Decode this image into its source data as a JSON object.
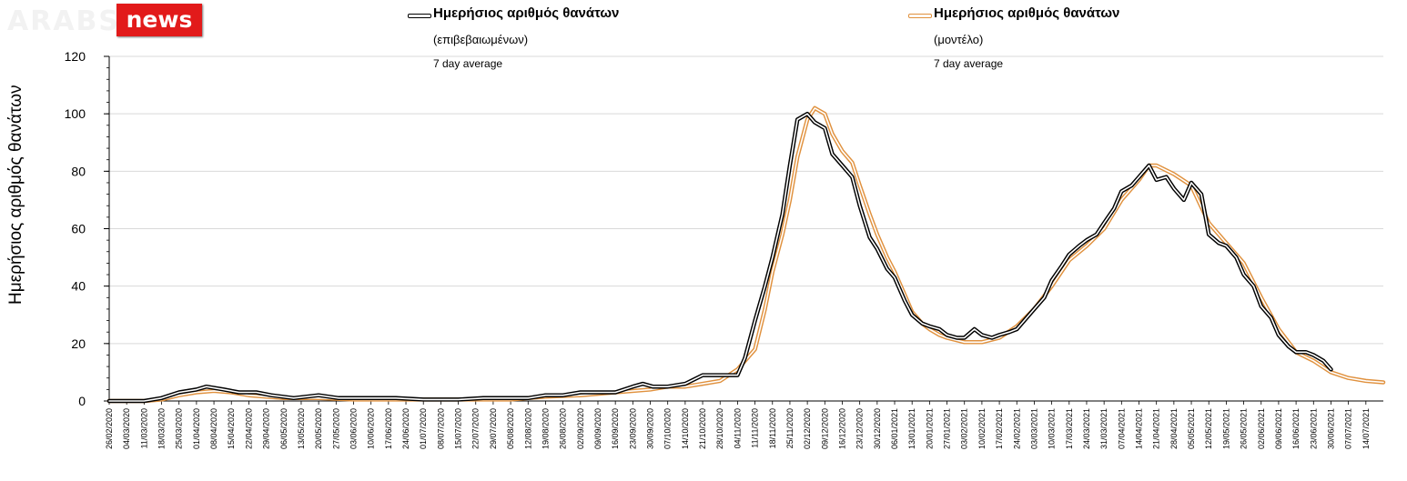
{
  "brand": {
    "ghost_text": "ARABS",
    "news_text": "news"
  },
  "colors": {
    "confirmed": "#000000",
    "model": "#e0913e",
    "grid": "#d9d9d9",
    "logo_bg": "#e21a1a"
  },
  "chart_data": {
    "type": "line",
    "title": "",
    "xlabel": "",
    "ylabel": "Ημερήσιος αριθμός θανάτων",
    "ylim": [
      0,
      120
    ],
    "yticks": [
      0,
      20,
      40,
      60,
      80,
      100,
      120
    ],
    "grid": "horizontal",
    "legend_placement": "top",
    "date_range": [
      "26/02/2020",
      "21/07/2021"
    ],
    "x_ticks": [
      "26/02/2020",
      "04/03/2020",
      "11/03/2020",
      "18/03/2020",
      "25/03/2020",
      "01/04/2020",
      "08/04/2020",
      "15/04/2020",
      "22/04/2020",
      "29/04/2020",
      "06/05/2020",
      "13/05/2020",
      "20/05/2020",
      "27/05/2020",
      "03/06/2020",
      "10/06/2020",
      "17/06/2020",
      "24/06/2020",
      "01/07/2020",
      "08/07/2020",
      "15/07/2020",
      "22/07/2020",
      "29/07/2020",
      "05/08/2020",
      "12/08/2020",
      "19/08/2020",
      "26/08/2020",
      "02/09/2020",
      "09/09/2020",
      "16/09/2020",
      "23/09/2020",
      "30/09/2020",
      "07/10/2020",
      "14/10/2020",
      "21/10/2020",
      "28/10/2020",
      "04/11/2020",
      "11/11/2020",
      "18/11/2020",
      "25/11/2020",
      "02/12/2020",
      "09/12/2020",
      "16/12/2020",
      "23/12/2020",
      "30/12/2020",
      "06/01/2021",
      "13/01/2021",
      "20/01/2021",
      "27/01/2021",
      "03/02/2021",
      "10/02/2021",
      "17/02/2021",
      "24/02/2021",
      "03/03/2021",
      "10/03/2021",
      "17/03/2021",
      "24/03/2021",
      "31/03/2021",
      "07/04/2021",
      "14/04/2021",
      "21/04/2021",
      "28/04/2021",
      "05/05/2021",
      "12/05/2021",
      "19/05/2021",
      "26/05/2021",
      "02/06/2021",
      "09/06/2021",
      "16/06/2021",
      "23/06/2021",
      "30/06/2021",
      "07/07/2021",
      "14/07/2021"
    ],
    "series": [
      {
        "name": "Ημερήσιος αριθμός θανάτων",
        "name_line2": "(επιβεβαιωμένων)",
        "note": "7 day average",
        "color": "#000000",
        "points": [
          [
            "26/02/2020",
            0
          ],
          [
            "11/03/2020",
            0
          ],
          [
            "18/03/2020",
            1
          ],
          [
            "25/03/2020",
            3
          ],
          [
            "01/04/2020",
            4
          ],
          [
            "05/04/2020",
            5
          ],
          [
            "12/04/2020",
            4
          ],
          [
            "18/04/2020",
            3
          ],
          [
            "25/04/2020",
            3
          ],
          [
            "01/05/2020",
            2
          ],
          [
            "10/05/2020",
            1
          ],
          [
            "20/05/2020",
            2
          ],
          [
            "28/05/2020",
            1
          ],
          [
            "10/06/2020",
            1
          ],
          [
            "20/06/2020",
            1
          ],
          [
            "01/07/2020",
            0.5
          ],
          [
            "15/07/2020",
            0.5
          ],
          [
            "25/07/2020",
            1
          ],
          [
            "05/08/2020",
            1
          ],
          [
            "12/08/2020",
            1
          ],
          [
            "19/08/2020",
            2
          ],
          [
            "26/08/2020",
            2
          ],
          [
            "02/09/2020",
            3
          ],
          [
            "09/09/2020",
            3
          ],
          [
            "16/09/2020",
            3
          ],
          [
            "23/09/2020",
            5
          ],
          [
            "27/09/2020",
            6
          ],
          [
            "01/10/2020",
            5
          ],
          [
            "07/10/2020",
            5
          ],
          [
            "14/10/2020",
            6
          ],
          [
            "21/10/2020",
            9
          ],
          [
            "28/10/2020",
            9
          ],
          [
            "04/11/2020",
            9
          ],
          [
            "07/11/2020",
            15
          ],
          [
            "11/11/2020",
            28
          ],
          [
            "15/11/2020",
            40
          ],
          [
            "18/11/2020",
            50
          ],
          [
            "22/11/2020",
            65
          ],
          [
            "25/11/2020",
            82
          ],
          [
            "28/11/2020",
            98
          ],
          [
            "02/12/2020",
            100
          ],
          [
            "05/12/2020",
            97
          ],
          [
            "09/12/2020",
            95
          ],
          [
            "12/12/2020",
            86
          ],
          [
            "16/12/2020",
            82
          ],
          [
            "20/12/2020",
            78
          ],
          [
            "23/12/2020",
            68
          ],
          [
            "27/12/2020",
            57
          ],
          [
            "30/12/2020",
            53
          ],
          [
            "03/01/2021",
            46
          ],
          [
            "06/01/2021",
            43
          ],
          [
            "10/01/2021",
            35
          ],
          [
            "13/01/2021",
            30
          ],
          [
            "17/01/2021",
            27
          ],
          [
            "20/01/2021",
            26
          ],
          [
            "24/01/2021",
            25
          ],
          [
            "27/01/2021",
            23
          ],
          [
            "31/01/2021",
            22
          ],
          [
            "03/02/2021",
            22
          ],
          [
            "07/02/2021",
            25
          ],
          [
            "10/02/2021",
            23
          ],
          [
            "14/02/2021",
            22
          ],
          [
            "17/02/2021",
            23
          ],
          [
            "21/02/2021",
            24
          ],
          [
            "24/02/2021",
            25
          ],
          [
            "28/02/2021",
            29
          ],
          [
            "03/03/2021",
            32
          ],
          [
            "07/03/2021",
            36
          ],
          [
            "10/03/2021",
            42
          ],
          [
            "14/03/2021",
            47
          ],
          [
            "17/03/2021",
            51
          ],
          [
            "21/03/2021",
            54
          ],
          [
            "24/03/2021",
            56
          ],
          [
            "28/03/2021",
            58
          ],
          [
            "31/03/2021",
            62
          ],
          [
            "04/04/2021",
            67
          ],
          [
            "07/04/2021",
            73
          ],
          [
            "11/04/2021",
            75
          ],
          [
            "14/04/2021",
            78
          ],
          [
            "18/04/2021",
            82
          ],
          [
            "21/04/2021",
            77
          ],
          [
            "25/04/2021",
            78
          ],
          [
            "28/04/2021",
            74
          ],
          [
            "02/05/2021",
            70
          ],
          [
            "05/05/2021",
            76
          ],
          [
            "09/05/2021",
            72
          ],
          [
            "12/05/2021",
            58
          ],
          [
            "16/05/2021",
            55
          ],
          [
            "19/05/2021",
            54
          ],
          [
            "23/05/2021",
            50
          ],
          [
            "26/05/2021",
            44
          ],
          [
            "30/05/2021",
            40
          ],
          [
            "02/06/2021",
            33
          ],
          [
            "06/06/2021",
            29
          ],
          [
            "09/06/2021",
            23
          ],
          [
            "13/06/2021",
            19
          ],
          [
            "16/06/2021",
            17
          ],
          [
            "20/06/2021",
            17
          ],
          [
            "23/06/2021",
            16
          ],
          [
            "27/06/2021",
            14
          ],
          [
            "30/06/2021",
            11
          ]
        ]
      },
      {
        "name": "Ημερήσιος αριθμός θανάτων",
        "name_line2": "(μοντέλο)",
        "note": "7 day average",
        "color": "#e0913e",
        "points": [
          [
            "26/02/2020",
            0
          ],
          [
            "11/03/2020",
            0
          ],
          [
            "18/03/2020",
            0.5
          ],
          [
            "25/03/2020",
            2
          ],
          [
            "01/04/2020",
            3
          ],
          [
            "08/04/2020",
            3.5
          ],
          [
            "15/04/2020",
            3
          ],
          [
            "22/04/2020",
            2
          ],
          [
            "29/04/2020",
            1.5
          ],
          [
            "06/05/2020",
            1
          ],
          [
            "20/05/2020",
            1
          ],
          [
            "03/06/2020",
            0.5
          ],
          [
            "17/06/2020",
            0.5
          ],
          [
            "01/07/2020",
            0.5
          ],
          [
            "22/07/2020",
            0.5
          ],
          [
            "05/08/2020",
            0.5
          ],
          [
            "12/08/2020",
            1
          ],
          [
            "19/08/2020",
            1.5
          ],
          [
            "02/09/2020",
            2
          ],
          [
            "16/09/2020",
            3
          ],
          [
            "30/09/2020",
            4
          ],
          [
            "07/10/2020",
            5
          ],
          [
            "14/10/2020",
            5
          ],
          [
            "21/10/2020",
            6
          ],
          [
            "28/10/2020",
            7
          ],
          [
            "04/11/2020",
            11
          ],
          [
            "11/11/2020",
            18
          ],
          [
            "15/11/2020",
            32
          ],
          [
            "18/11/2020",
            45
          ],
          [
            "22/11/2020",
            58
          ],
          [
            "25/11/2020",
            70
          ],
          [
            "28/11/2020",
            85
          ],
          [
            "02/12/2020",
            98
          ],
          [
            "05/12/2020",
            102
          ],
          [
            "09/12/2020",
            100
          ],
          [
            "12/12/2020",
            93
          ],
          [
            "16/12/2020",
            87
          ],
          [
            "20/12/2020",
            83
          ],
          [
            "23/12/2020",
            75
          ],
          [
            "27/12/2020",
            65
          ],
          [
            "30/12/2020",
            58
          ],
          [
            "03/01/2021",
            50
          ],
          [
            "06/01/2021",
            45
          ],
          [
            "10/01/2021",
            37
          ],
          [
            "13/01/2021",
            31
          ],
          [
            "17/01/2021",
            27
          ],
          [
            "20/01/2021",
            25
          ],
          [
            "24/01/2021",
            23
          ],
          [
            "27/01/2021",
            22
          ],
          [
            "03/02/2021",
            20.5
          ],
          [
            "10/02/2021",
            20.5
          ],
          [
            "17/02/2021",
            22
          ],
          [
            "24/02/2021",
            26
          ],
          [
            "03/03/2021",
            32
          ],
          [
            "10/03/2021",
            40
          ],
          [
            "17/03/2021",
            49
          ],
          [
            "24/03/2021",
            54
          ],
          [
            "31/03/2021",
            60
          ],
          [
            "07/04/2021",
            70
          ],
          [
            "14/04/2021",
            77
          ],
          [
            "18/04/2021",
            82
          ],
          [
            "21/04/2021",
            82
          ],
          [
            "28/04/2021",
            79
          ],
          [
            "05/05/2021",
            75
          ],
          [
            "12/05/2021",
            62
          ],
          [
            "19/05/2021",
            55
          ],
          [
            "26/05/2021",
            48
          ],
          [
            "02/06/2021",
            36
          ],
          [
            "09/06/2021",
            25
          ],
          [
            "16/06/2021",
            17
          ],
          [
            "23/06/2021",
            14
          ],
          [
            "30/06/2021",
            10
          ],
          [
            "07/07/2021",
            8
          ],
          [
            "14/07/2021",
            7
          ],
          [
            "21/07/2021",
            6.5
          ]
        ]
      }
    ]
  }
}
